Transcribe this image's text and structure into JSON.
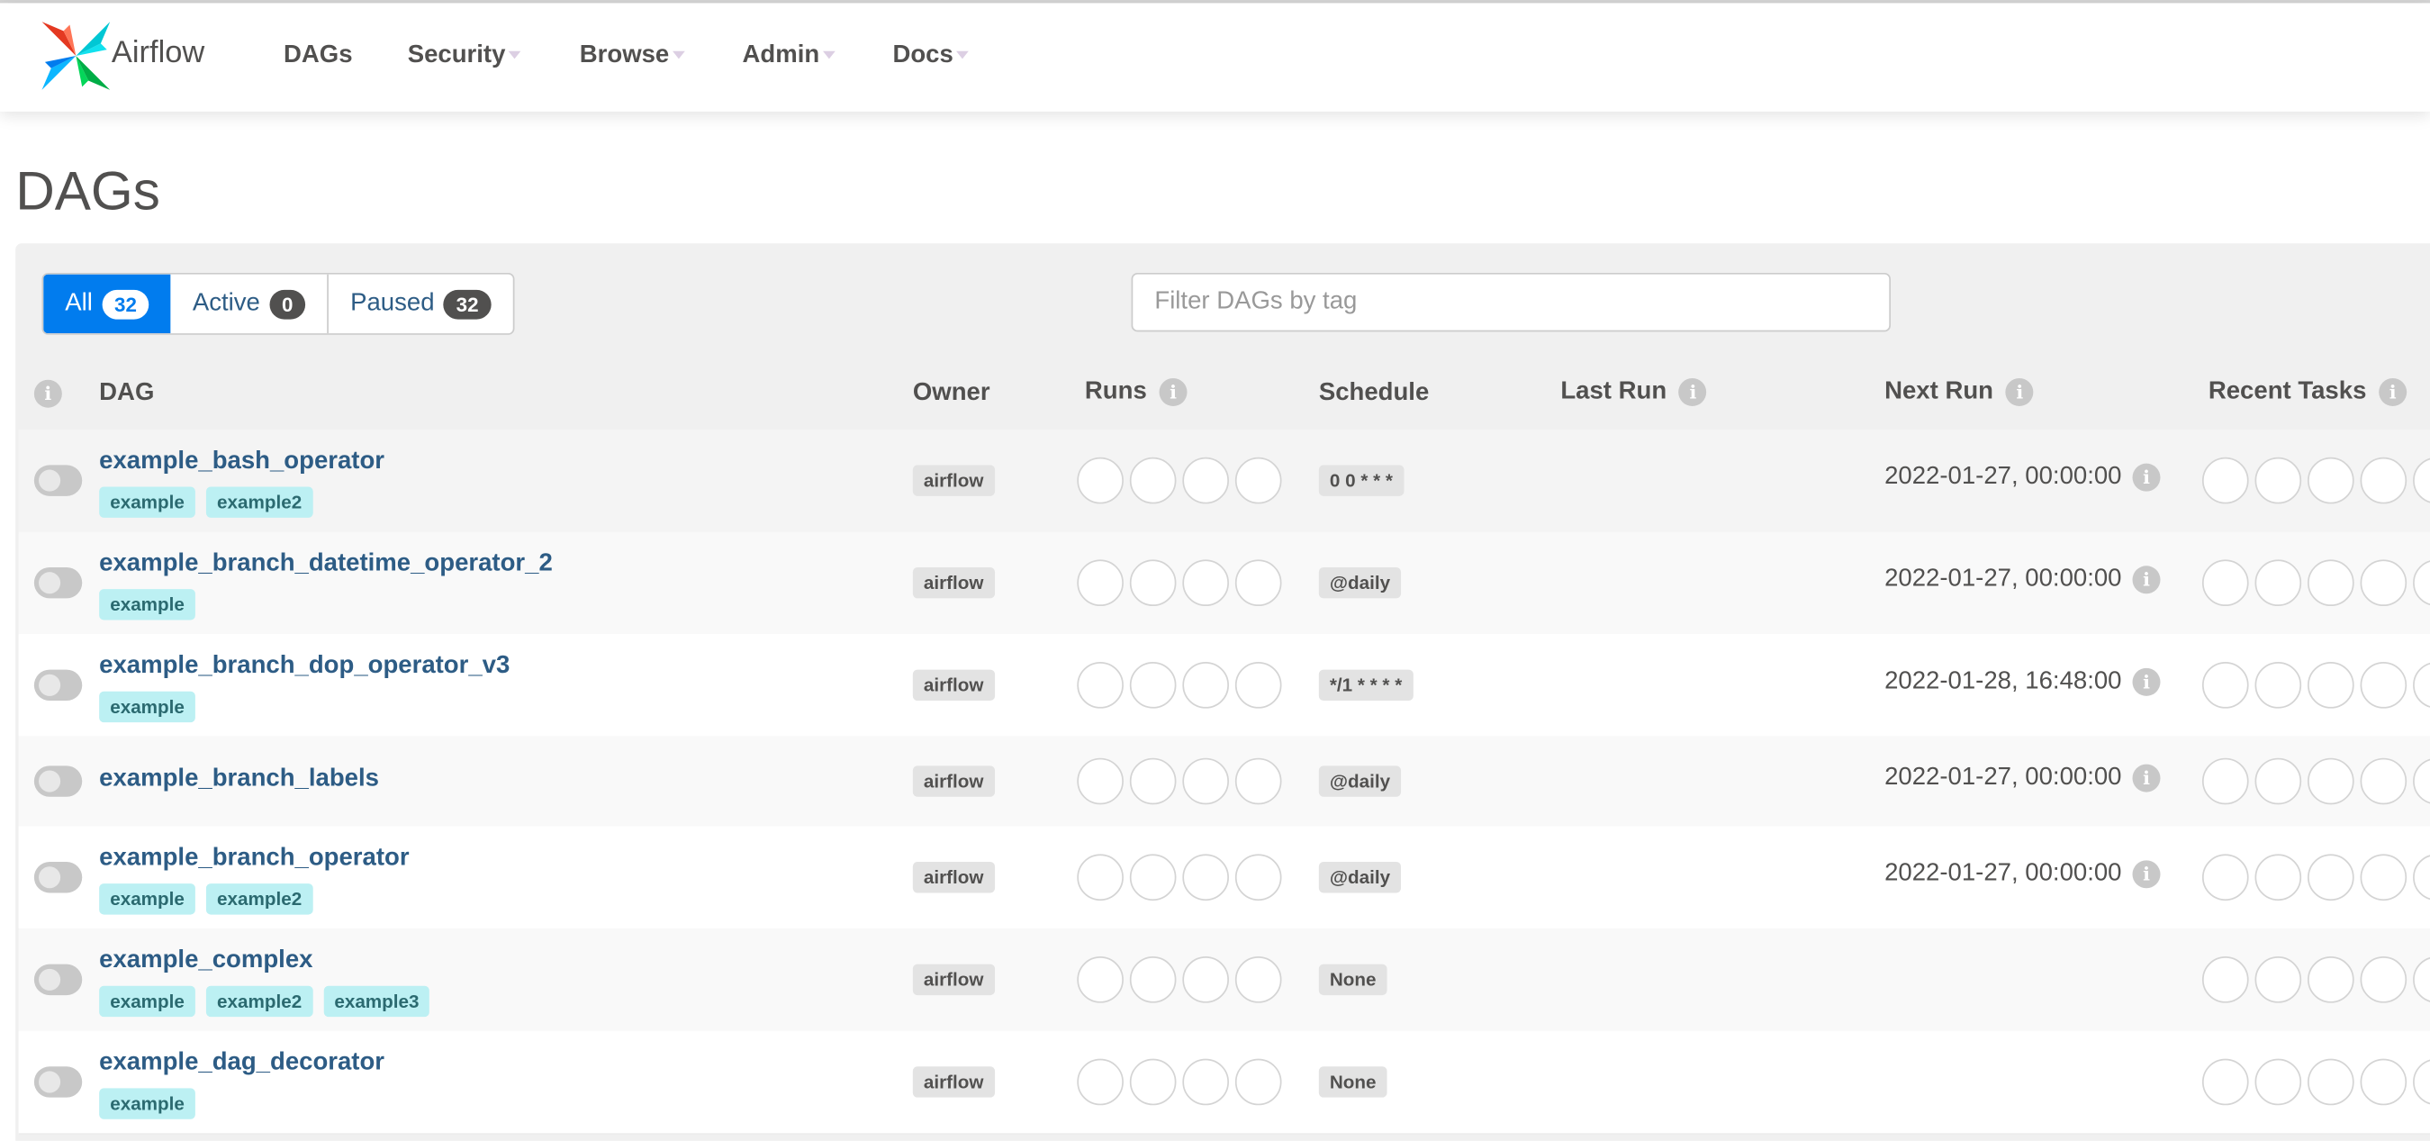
{
  "navbar": {
    "brand": "Airflow",
    "items": [
      {
        "label": "DAGs",
        "dropdown": false
      },
      {
        "label": "Security",
        "dropdown": true
      },
      {
        "label": "Browse",
        "dropdown": true
      },
      {
        "label": "Admin",
        "dropdown": true
      },
      {
        "label": "Docs",
        "dropdown": true
      }
    ]
  },
  "page_title": "DAGs",
  "filters": {
    "all": {
      "label": "All",
      "count": "32"
    },
    "active": {
      "label": "Active",
      "count": "0"
    },
    "paused": {
      "label": "Paused",
      "count": "32"
    },
    "selected": "all",
    "tag_placeholder": "Filter DAGs by tag"
  },
  "columns": {
    "dag": "DAG",
    "owner": "Owner",
    "runs": "Runs",
    "schedule": "Schedule",
    "last_run": "Last Run",
    "next_run": "Next Run",
    "recent_tasks": "Recent Tasks"
  },
  "colors": {
    "accent": "#017cee",
    "link": "#2d5c85",
    "tag_bg": "#bcf0f3"
  },
  "dags": [
    {
      "id": "example_bash_operator",
      "tags": [
        "example",
        "example2"
      ],
      "owner": "airflow",
      "schedule": "0 0 * * *",
      "next_run": "2022-01-27, 00:00:00",
      "paused": true
    },
    {
      "id": "example_branch_datetime_operator_2",
      "tags": [
        "example"
      ],
      "owner": "airflow",
      "schedule": "@daily",
      "next_run": "2022-01-27, 00:00:00",
      "paused": true
    },
    {
      "id": "example_branch_dop_operator_v3",
      "tags": [
        "example"
      ],
      "owner": "airflow",
      "schedule": "*/1 * * * *",
      "next_run": "2022-01-28, 16:48:00",
      "paused": true
    },
    {
      "id": "example_branch_labels",
      "tags": [],
      "owner": "airflow",
      "schedule": "@daily",
      "next_run": "2022-01-27, 00:00:00",
      "paused": true
    },
    {
      "id": "example_branch_operator",
      "tags": [
        "example",
        "example2"
      ],
      "owner": "airflow",
      "schedule": "@daily",
      "next_run": "2022-01-27, 00:00:00",
      "paused": true
    },
    {
      "id": "example_complex",
      "tags": [
        "example",
        "example2",
        "example3"
      ],
      "owner": "airflow",
      "schedule": "None",
      "next_run": "",
      "paused": true
    },
    {
      "id": "example_dag_decorator",
      "tags": [
        "example"
      ],
      "owner": "airflow",
      "schedule": "None",
      "next_run": "",
      "paused": true
    }
  ]
}
